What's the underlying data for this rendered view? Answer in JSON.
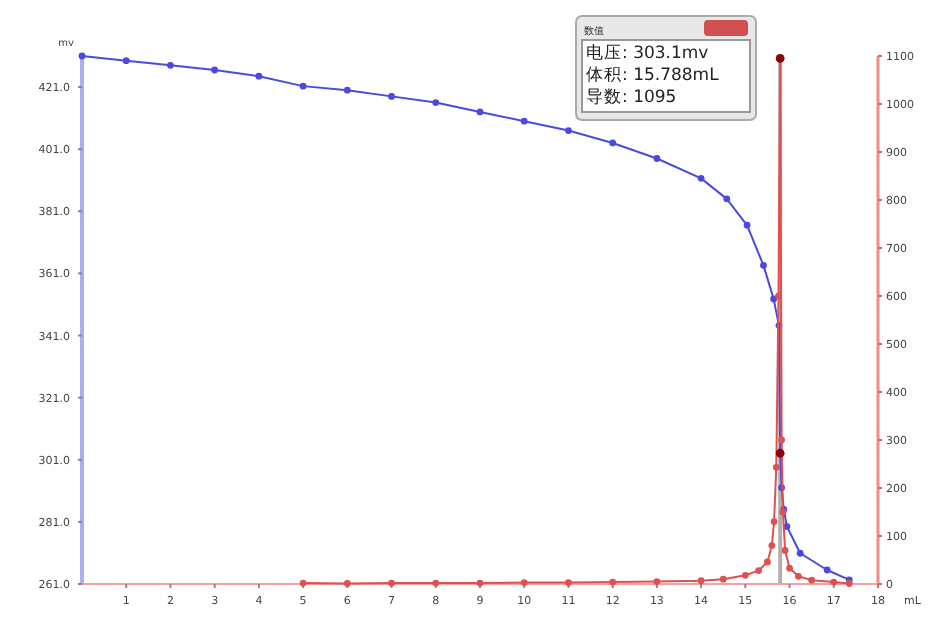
{
  "chart_data": {
    "type": "line",
    "xlabel": "mL",
    "ylabel": "mv",
    "xlim": [
      0,
      18
    ],
    "xticks": [
      1,
      2,
      3,
      4,
      5,
      6,
      7,
      8,
      9,
      10,
      11,
      12,
      13,
      14,
      15,
      16,
      17,
      18
    ],
    "ylim": [
      261,
      431
    ],
    "yticks": [
      {
        "value": 261,
        "label": "261.0"
      },
      {
        "value": 281,
        "label": "281.0"
      },
      {
        "value": 301,
        "label": "301.0"
      },
      {
        "value": 321,
        "label": "321.0"
      },
      {
        "value": 341,
        "label": "341.0"
      },
      {
        "value": 361,
        "label": "361.0"
      },
      {
        "value": 381,
        "label": "381.0"
      },
      {
        "value": 401,
        "label": "401.0"
      },
      {
        "value": 421,
        "label": "421.0"
      }
    ],
    "y2lim": [
      0,
      1100
    ],
    "y2ticks": [
      0,
      100,
      200,
      300,
      400,
      500,
      600,
      700,
      800,
      900,
      1000,
      1100
    ],
    "marker": "circle",
    "grid": false,
    "series": [
      {
        "color": "#4a4ae0",
        "x": [
          0,
          1,
          2,
          3,
          4,
          5,
          6,
          7,
          8,
          9,
          10,
          11,
          12,
          13,
          14,
          14.58,
          15.04,
          15.41,
          15.64,
          15.76,
          15.788,
          15.82,
          15.87,
          15.94,
          16.24,
          16.85,
          17.35
        ],
        "values": [
          431,
          429.5,
          428,
          426.5,
          424.5,
          421.3,
          420,
          418,
          416,
          413,
          410,
          407,
          403,
          398,
          391.6,
          385,
          376.5,
          363.6,
          352.8,
          344.2,
          303.1,
          292,
          285,
          279.5,
          270.9,
          265.5,
          262.3
        ]
      },
      {
        "color": "#e05050",
        "axis": "y2",
        "x": [
          5,
          6,
          7,
          8,
          9,
          10,
          11,
          12,
          13,
          14,
          14.5,
          15,
          15.3,
          15.5,
          15.6,
          15.65,
          15.7,
          15.75,
          15.788,
          15.82,
          15.85,
          15.9,
          16,
          16.2,
          16.5,
          17,
          17.35
        ],
        "values": [
          2,
          1,
          2,
          2,
          2,
          3,
          3,
          4,
          5,
          7,
          10,
          18,
          28,
          46,
          80,
          130,
          243,
          600,
          1095,
          300,
          150,
          70,
          33,
          16,
          8,
          4,
          1
        ]
      },
      {
        "type": "scatter",
        "color": "#8b0000",
        "x": [
          15.788
        ],
        "values": [
          303.1
        ]
      },
      {
        "type": "scatter",
        "color": "#8b0000",
        "axis": "y2",
        "x": [
          15.788
        ],
        "values": [
          1095
        ]
      }
    ],
    "ref_lines": [
      {
        "axis": "x",
        "value": 15.788,
        "color": "#b0b0b0"
      }
    ],
    "annotations": [
      "数值",
      "电压: 303.1mv",
      "体积: 15.788mL",
      "导数: 1095"
    ]
  }
}
